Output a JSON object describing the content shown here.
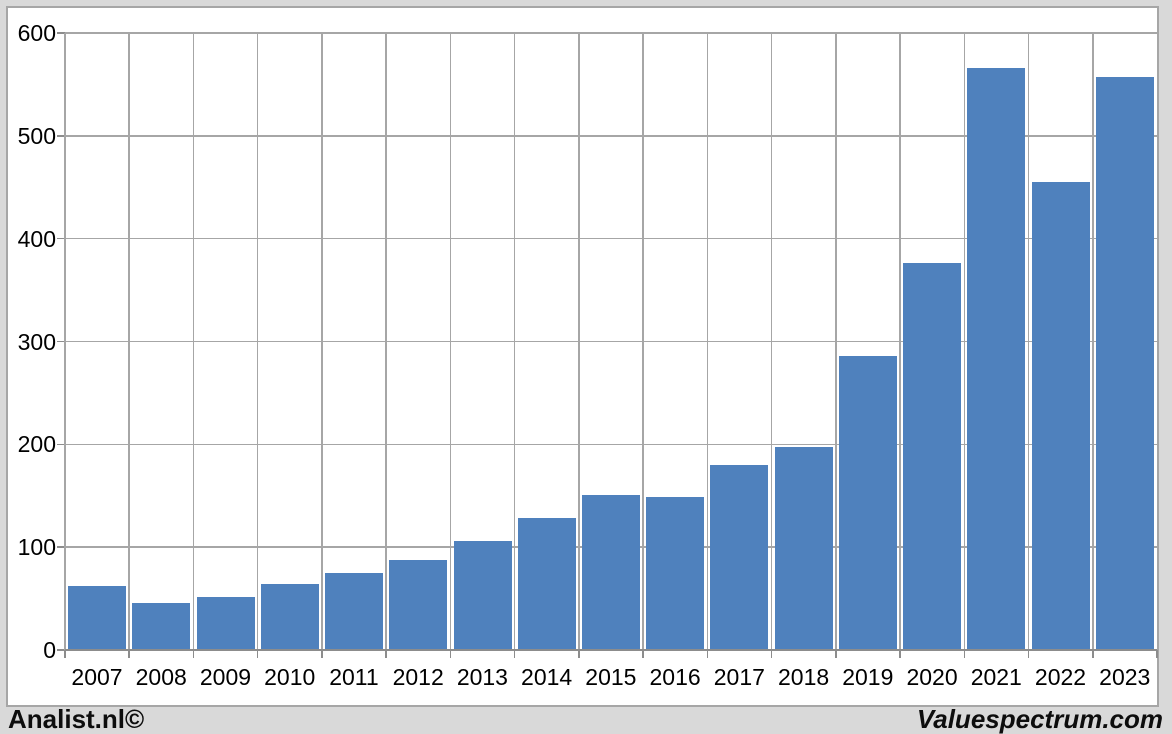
{
  "chart_data": {
    "type": "bar",
    "categories": [
      "2007",
      "2008",
      "2009",
      "2010",
      "2011",
      "2012",
      "2013",
      "2014",
      "2015",
      "2016",
      "2017",
      "2018",
      "2019",
      "2020",
      "2021",
      "2022",
      "2023"
    ],
    "values": [
      62,
      46,
      52,
      64,
      75,
      88,
      106,
      128,
      151,
      149,
      180,
      197,
      286,
      376,
      566,
      455,
      557
    ],
    "title": "",
    "xlabel": "",
    "ylabel": "",
    "ylim": [
      0,
      600
    ],
    "yticks": [
      600,
      500,
      400,
      300,
      200,
      100,
      0
    ],
    "grid": "both",
    "legend": "none",
    "bar_color": "#4F81BD",
    "grid_color": "#A6A6A6",
    "axis_color": "#8C8C8C",
    "plot_bg": "#FFFFFF",
    "outer_bg": "#D9D9D9"
  },
  "footer": {
    "left": "Analist.nl©",
    "right": "Valuespectrum.com"
  }
}
